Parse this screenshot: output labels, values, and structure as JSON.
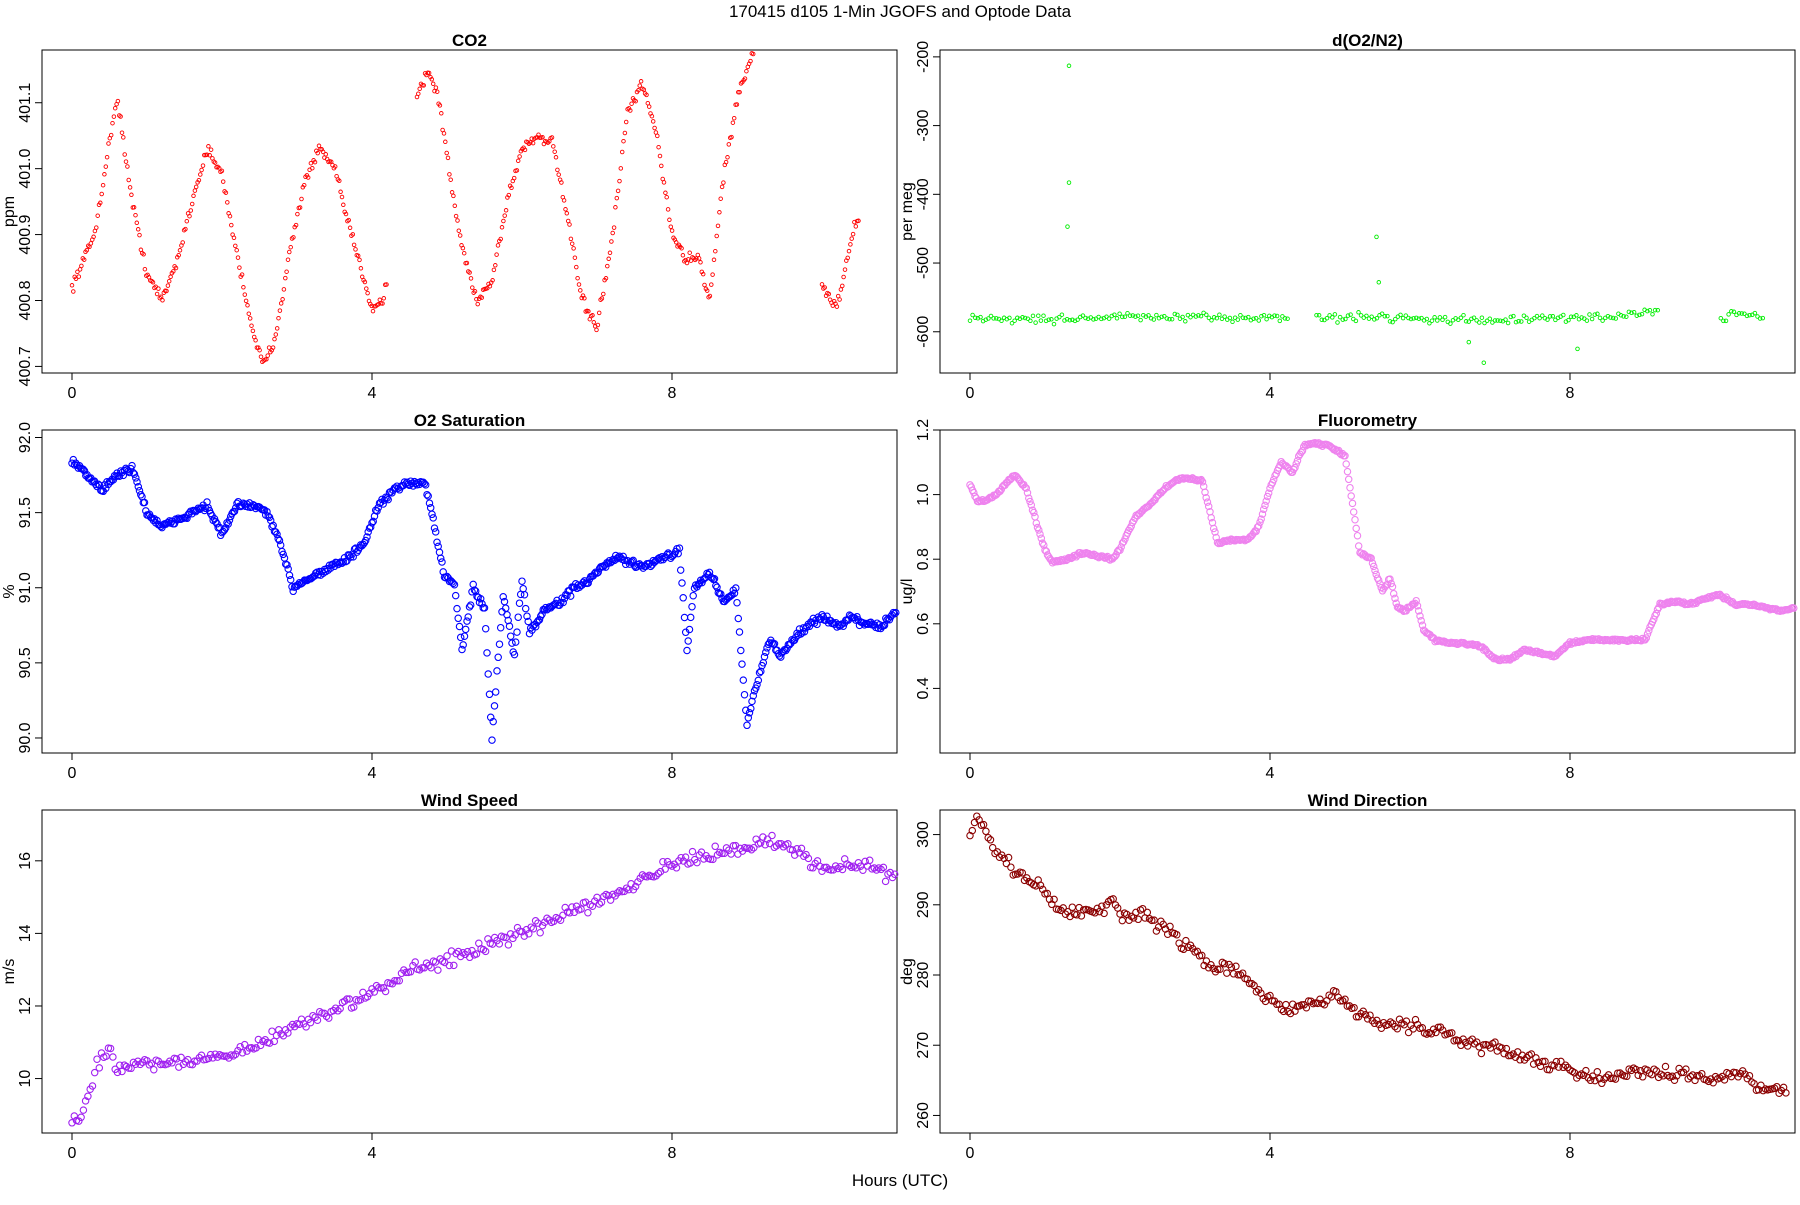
{
  "figure": {
    "title": "170415   d105   1-Min  JGOFS and Optode Data",
    "xlabel": "Hours (UTC)"
  },
  "chart_data": [
    {
      "type": "scatter",
      "title": "CO2",
      "ylabel": "ppm",
      "xlim": [
        -0.4,
        11.0
      ],
      "ylim": [
        400.69,
        401.18
      ],
      "xticks": [
        "0",
        "4",
        "8"
      ],
      "yticks": [
        "400.7",
        "400.8",
        "400.9",
        "401.0",
        "401.1"
      ],
      "color": "#ff0000",
      "marker_size": "small",
      "series": [
        {
          "x": [
            0.0,
            0.3,
            0.6,
            0.8,
            1.0,
            1.2,
            1.4,
            1.6,
            1.8,
            2.0,
            2.2,
            2.4,
            2.55,
            2.7,
            2.9,
            3.1,
            3.3,
            3.5,
            3.7,
            3.9,
            4.0,
            4.15,
            4.6,
            4.75,
            4.9,
            5.05,
            5.2,
            5.4,
            5.6,
            5.8,
            6.0,
            6.2,
            6.4,
            6.55,
            6.8,
            7.0,
            7.2,
            7.4,
            7.6,
            7.8,
            8.0,
            8.2,
            8.35,
            8.5,
            8.7,
            8.9,
            9.1,
            10.0,
            10.2,
            10.45
          ],
          "y": [
            400.82,
            400.9,
            401.11,
            400.95,
            400.84,
            400.8,
            400.86,
            400.95,
            401.03,
            400.99,
            400.87,
            400.76,
            400.7,
            400.74,
            400.87,
            400.98,
            401.03,
            401.0,
            400.91,
            400.83,
            400.79,
            400.8,
            401.11,
            401.15,
            401.1,
            400.98,
            400.88,
            400.8,
            400.83,
            400.95,
            401.03,
            401.05,
            401.04,
            400.96,
            400.8,
            400.76,
            400.89,
            401.08,
            401.13,
            401.05,
            400.9,
            400.86,
            400.87,
            400.8,
            401.0,
            401.12,
            401.18,
            400.82,
            400.79,
            400.92
          ]
        }
      ]
    },
    {
      "type": "scatter",
      "title": "d(O2/N2)",
      "ylabel": "per meg",
      "xlim": [
        -0.4,
        11.0
      ],
      "ylim": [
        -660,
        -190
      ],
      "xticks": [
        "0",
        "4",
        "8"
      ],
      "yticks": [
        "-600",
        "-500",
        "-400",
        "-300",
        "-200"
      ],
      "color": "#00ee00",
      "marker_size": "small",
      "gaps": [
        [
          4.25,
          4.6
        ],
        [
          9.2,
          10.0
        ]
      ],
      "baseline": [
        [
          0.0,
          -580
        ],
        [
          1.0,
          -582
        ],
        [
          2.0,
          -578
        ],
        [
          3.0,
          -580
        ],
        [
          4.0,
          -579
        ],
        [
          4.6,
          -580
        ],
        [
          5.5,
          -578
        ],
        [
          6.5,
          -583
        ],
        [
          7.5,
          -582
        ],
        [
          8.5,
          -578
        ],
        [
          9.2,
          -570
        ],
        [
          10.0,
          -582
        ],
        [
          10.3,
          -572
        ],
        [
          10.6,
          -580
        ]
      ],
      "outliers": [
        {
          "x": 1.32,
          "y": -213
        },
        {
          "x": 1.32,
          "y": -383
        },
        {
          "x": 1.3,
          "y": -447
        },
        {
          "x": 5.42,
          "y": -462
        },
        {
          "x": 5.45,
          "y": -528
        },
        {
          "x": 6.85,
          "y": -645
        },
        {
          "x": 6.65,
          "y": -615
        },
        {
          "x": 8.1,
          "y": -625
        }
      ]
    },
    {
      "type": "scatter",
      "title": "O2 Saturation",
      "ylabel": "%",
      "xlim": [
        -0.4,
        11.0
      ],
      "ylim": [
        89.9,
        92.05
      ],
      "xticks": [
        "0",
        "4",
        "8"
      ],
      "yticks": [
        "90.0",
        "90.5",
        "91.0",
        "91.5",
        "92.0"
      ],
      "color": "#0000ff",
      "marker_size": "large",
      "series": [
        {
          "x": [
            0.0,
            0.2,
            0.4,
            0.6,
            0.8,
            1.0,
            1.2,
            1.4,
            1.6,
            1.8,
            2.0,
            2.2,
            2.4,
            2.6,
            2.8,
            2.95,
            3.1,
            3.3,
            3.5,
            3.7,
            3.9,
            4.1,
            4.3,
            4.5,
            4.7,
            4.8,
            4.95,
            5.1,
            5.2,
            5.35,
            5.5,
            5.6,
            5.75,
            5.9,
            6.0,
            6.1,
            6.3,
            6.5,
            6.7,
            6.9,
            7.1,
            7.3,
            7.5,
            7.7,
            7.9,
            8.1,
            8.2,
            8.3,
            8.5,
            8.7,
            8.85,
            9.0,
            9.1,
            9.3,
            9.45,
            9.6,
            9.8,
            10.0,
            10.2,
            10.4,
            10.6,
            10.8,
            11.0
          ],
          "y": [
            91.85,
            91.75,
            91.65,
            91.75,
            91.8,
            91.5,
            91.4,
            91.45,
            91.5,
            91.55,
            91.35,
            91.55,
            91.55,
            91.5,
            91.25,
            91.0,
            91.05,
            91.1,
            91.15,
            91.2,
            91.3,
            91.55,
            91.65,
            91.7,
            91.7,
            91.5,
            91.1,
            91.0,
            90.6,
            91.0,
            90.85,
            90.0,
            90.95,
            90.55,
            91.05,
            90.7,
            90.85,
            90.9,
            91.0,
            91.05,
            91.15,
            91.2,
            91.15,
            91.15,
            91.2,
            91.25,
            90.6,
            91.0,
            91.1,
            90.9,
            91.0,
            90.1,
            90.3,
            90.65,
            90.55,
            90.65,
            90.75,
            90.8,
            90.75,
            90.8,
            90.75,
            90.75,
            90.85
          ]
        }
      ]
    },
    {
      "type": "scatter",
      "title": "Fluorometry",
      "ylabel": "ug/l",
      "xlim": [
        -0.4,
        11.0
      ],
      "ylim": [
        0.2,
        1.2
      ],
      "xticks": [
        "0",
        "4",
        "8"
      ],
      "yticks": [
        "0.4",
        "0.6",
        "0.8",
        "1.0",
        "1.2"
      ],
      "color": "#ee82ee",
      "marker_size": "large",
      "series": [
        {
          "x": [
            0.0,
            0.1,
            0.2,
            0.35,
            0.5,
            0.6,
            0.75,
            0.9,
            1.0,
            1.1,
            1.3,
            1.5,
            1.7,
            1.9,
            2.0,
            2.2,
            2.4,
            2.6,
            2.8,
            2.95,
            3.1,
            3.3,
            3.5,
            3.7,
            3.85,
            4.0,
            4.15,
            4.3,
            4.45,
            4.6,
            4.8,
            5.0,
            5.1,
            5.2,
            5.35,
            5.5,
            5.6,
            5.7,
            5.8,
            5.95,
            6.05,
            6.2,
            6.4,
            6.6,
            6.8,
            7.0,
            7.2,
            7.4,
            7.6,
            7.8,
            8.0,
            8.2,
            8.4,
            8.6,
            8.8,
            9.0,
            9.2,
            9.4,
            9.6,
            9.8,
            10.0,
            10.2,
            10.4,
            10.6,
            10.8,
            11.0
          ],
          "y": [
            1.03,
            0.98,
            0.98,
            1.0,
            1.04,
            1.06,
            1.02,
            0.9,
            0.83,
            0.79,
            0.8,
            0.82,
            0.81,
            0.8,
            0.83,
            0.93,
            0.97,
            1.02,
            1.05,
            1.05,
            1.04,
            0.85,
            0.86,
            0.86,
            0.9,
            1.02,
            1.1,
            1.07,
            1.15,
            1.16,
            1.15,
            1.12,
            0.97,
            0.82,
            0.8,
            0.7,
            0.74,
            0.65,
            0.64,
            0.67,
            0.58,
            0.55,
            0.54,
            0.54,
            0.53,
            0.49,
            0.49,
            0.52,
            0.51,
            0.5,
            0.54,
            0.55,
            0.55,
            0.55,
            0.55,
            0.55,
            0.66,
            0.67,
            0.66,
            0.68,
            0.69,
            0.66,
            0.66,
            0.65,
            0.64,
            0.65
          ]
        }
      ]
    },
    {
      "type": "scatter",
      "title": "Wind Speed",
      "ylabel": "m/s",
      "xlim": [
        -0.4,
        11.0
      ],
      "ylim": [
        8.5,
        17.4
      ],
      "xticks": [
        "0",
        "4",
        "8"
      ],
      "yticks": [
        "10",
        "12",
        "14",
        "16"
      ],
      "color": "#a020f0",
      "marker_size": "large",
      "series": [
        {
          "x": [
            0.0,
            0.1,
            0.2,
            0.3,
            0.4,
            0.5,
            0.6,
            0.8,
            1.0,
            1.3,
            1.6,
            2.0,
            2.5,
            3.0,
            3.5,
            4.0,
            4.5,
            5.0,
            5.5,
            6.0,
            6.5,
            7.0,
            7.5,
            8.0,
            8.5,
            9.0,
            9.3,
            9.6,
            10.0,
            10.3,
            10.6,
            11.0
          ],
          "y": [
            8.9,
            8.8,
            9.5,
            10.2,
            10.6,
            10.8,
            10.2,
            10.4,
            10.5,
            10.4,
            10.5,
            10.6,
            10.9,
            11.5,
            11.9,
            12.3,
            13.0,
            13.3,
            13.6,
            14.0,
            14.5,
            14.9,
            15.4,
            15.9,
            16.1,
            16.4,
            16.6,
            16.3,
            15.8,
            15.9,
            15.9,
            15.5
          ]
        }
      ]
    },
    {
      "type": "scatter",
      "title": "Wind Direction",
      "ylabel": "deg",
      "xlim": [
        -0.4,
        11.0
      ],
      "ylim": [
        257.5,
        303.5
      ],
      "xticks": [
        "0",
        "4",
        "8"
      ],
      "yticks": [
        "260",
        "270",
        "280",
        "290",
        "300"
      ],
      "color": "#8b0000",
      "marker_size": "large",
      "series": [
        {
          "x": [
            0.0,
            0.1,
            0.2,
            0.35,
            0.5,
            0.7,
            0.9,
            1.1,
            1.3,
            1.5,
            1.7,
            1.9,
            2.1,
            2.3,
            2.5,
            2.7,
            2.9,
            3.1,
            3.3,
            3.5,
            3.7,
            3.9,
            4.1,
            4.3,
            4.5,
            4.7,
            4.9,
            5.1,
            5.3,
            5.5,
            5.7,
            5.9,
            6.1,
            6.3,
            6.5,
            6.7,
            6.9,
            7.1,
            7.3,
            7.5,
            7.7,
            7.9,
            8.1,
            8.3,
            8.5,
            8.7,
            8.9,
            9.1,
            9.3,
            9.5,
            9.7,
            9.9,
            10.1,
            10.3,
            10.5,
            10.7,
            10.9
          ],
          "y": [
            300,
            302,
            301,
            297,
            296,
            294,
            293,
            290,
            289,
            289,
            289,
            290,
            288,
            289,
            287,
            286,
            284,
            282,
            281,
            281,
            279,
            277,
            276,
            275,
            276,
            276,
            277,
            275,
            274,
            273,
            273,
            273,
            272,
            272,
            271,
            270,
            270,
            269,
            269,
            268,
            267,
            267,
            266,
            266,
            265,
            266,
            266,
            266,
            266,
            266,
            266,
            265,
            266,
            266,
            264,
            264,
            263
          ]
        }
      ]
    }
  ]
}
